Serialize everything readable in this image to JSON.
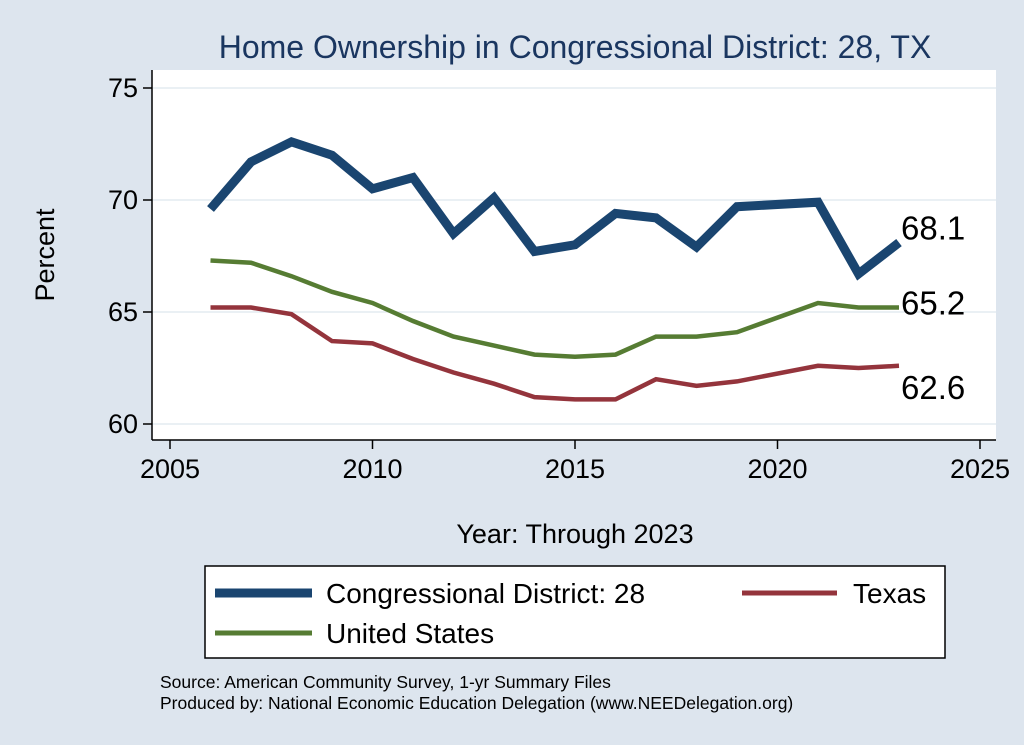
{
  "chart_data": {
    "type": "line",
    "title": "Home Ownership in Congressional District:  28, TX",
    "xlabel": "Year: Through 2023",
    "ylabel": "Percent",
    "xlim": [
      2005,
      2025
    ],
    "ylim": [
      60,
      75
    ],
    "xticks": [
      2005,
      2010,
      2015,
      2020,
      2025
    ],
    "yticks": [
      60,
      65,
      70,
      75
    ],
    "grid": true,
    "legend_position": "bottom",
    "x": [
      2006,
      2007,
      2008,
      2009,
      2010,
      2011,
      2012,
      2013,
      2014,
      2015,
      2016,
      2017,
      2018,
      2019,
      2021,
      2022,
      2023
    ],
    "series": [
      {
        "name": "Congressional District:  28",
        "color": "#1a4570",
        "values": [
          69.6,
          71.7,
          72.6,
          72.0,
          70.5,
          71.0,
          68.5,
          70.1,
          67.7,
          68.0,
          69.4,
          69.2,
          67.9,
          69.7,
          69.9,
          66.7,
          68.1
        ],
        "end_label": "68.1"
      },
      {
        "name": "Texas",
        "color": "#94343c",
        "values": [
          65.2,
          65.2,
          64.9,
          63.7,
          63.6,
          62.9,
          62.3,
          61.8,
          61.2,
          61.1,
          61.1,
          62.0,
          61.7,
          61.9,
          62.6,
          62.5,
          62.6
        ],
        "end_label": "62.6"
      },
      {
        "name": "United States",
        "color": "#567c33",
        "values": [
          67.3,
          67.2,
          66.6,
          65.9,
          65.4,
          64.6,
          63.9,
          63.5,
          63.1,
          63.0,
          63.1,
          63.9,
          63.9,
          64.1,
          65.4,
          65.2,
          65.2
        ],
        "end_label": "65.2"
      }
    ]
  },
  "source_lines": [
    "Source: American Community Survey, 1-yr Summary Files",
    "Produced by: National Economic Education Delegation (www.NEEDelegation.org)"
  ]
}
